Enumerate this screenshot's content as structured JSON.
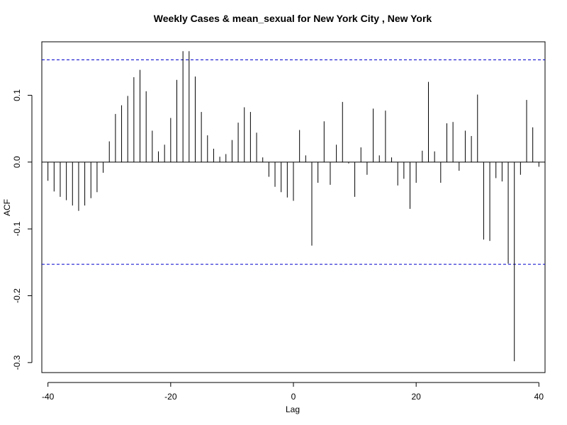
{
  "chart_data": {
    "type": "bar",
    "title": "Weekly Cases & mean_sexual for New York City , New York",
    "xlabel": "Lag",
    "ylabel": "ACF",
    "xlim": [
      -41,
      41
    ],
    "ylim": [
      -0.315,
      0.18
    ],
    "x_ticks": [
      -40,
      -20,
      0,
      20,
      40
    ],
    "x_tick_labels": [
      "-40",
      "-20",
      "0",
      "20",
      "40"
    ],
    "y_ticks": [
      -0.3,
      -0.2,
      -0.1,
      0.0,
      0.1
    ],
    "y_tick_labels": [
      "-0.3",
      "-0.2",
      "-0.1",
      "0.0",
      "0.1"
    ],
    "confidence_bound": 0.153,
    "zero_line": true,
    "bound_color": "#0000cc",
    "bar_color": "#000000",
    "lags": [
      -40,
      -39,
      -38,
      -37,
      -36,
      -35,
      -34,
      -33,
      -32,
      -31,
      -30,
      -29,
      -28,
      -27,
      -26,
      -25,
      -24,
      -23,
      -22,
      -21,
      -20,
      -19,
      -18,
      -17,
      -16,
      -15,
      -14,
      -13,
      -12,
      -11,
      -10,
      -9,
      -8,
      -7,
      -6,
      -5,
      -4,
      -3,
      -2,
      -1,
      0,
      1,
      2,
      3,
      4,
      5,
      6,
      7,
      8,
      9,
      10,
      11,
      12,
      13,
      14,
      15,
      16,
      17,
      18,
      19,
      20,
      21,
      22,
      23,
      24,
      25,
      26,
      27,
      28,
      29,
      30,
      31,
      32,
      33,
      34,
      35,
      36,
      37,
      38,
      39,
      40
    ],
    "values": [
      -0.028,
      -0.044,
      -0.052,
      -0.057,
      -0.065,
      -0.073,
      -0.065,
      -0.054,
      -0.045,
      -0.016,
      0.031,
      0.072,
      0.085,
      0.099,
      0.127,
      0.138,
      0.106,
      0.047,
      0.016,
      0.026,
      0.066,
      0.123,
      0.166,
      0.166,
      0.128,
      0.075,
      0.04,
      0.02,
      0.008,
      0.012,
      0.033,
      0.059,
      0.082,
      0.075,
      0.044,
      0.007,
      -0.022,
      -0.037,
      -0.045,
      -0.053,
      -0.058,
      0.048,
      0.01,
      -0.125,
      -0.031,
      0.061,
      -0.034,
      0.026,
      0.09,
      -0.002,
      -0.052,
      0.022,
      -0.019,
      0.08,
      0.01,
      0.077,
      0.007,
      -0.035,
      -0.025,
      -0.07,
      -0.031,
      0.017,
      0.12,
      0.016,
      -0.031,
      0.058,
      0.06,
      -0.013,
      0.047,
      0.039,
      0.101,
      -0.116,
      -0.118,
      -0.024,
      -0.029,
      -0.152,
      -0.298,
      -0.019,
      0.093,
      0.052,
      -0.007
    ]
  }
}
